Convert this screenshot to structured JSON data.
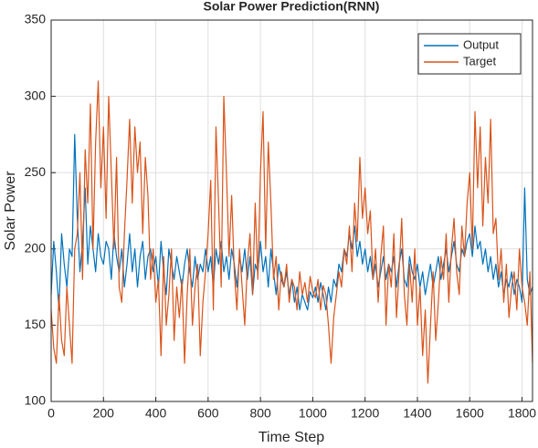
{
  "chart_data": {
    "type": "line",
    "title": "Solar Power Prediction(RNN)",
    "xlabel": "Time Step",
    "ylabel": "Solar Power",
    "x": [
      0,
      10,
      20,
      30,
      40,
      50,
      60,
      70,
      80,
      90,
      100,
      110,
      120,
      130,
      140,
      150,
      160,
      170,
      180,
      190,
      200,
      210,
      220,
      230,
      240,
      250,
      260,
      270,
      280,
      290,
      300,
      310,
      320,
      330,
      340,
      350,
      360,
      370,
      380,
      390,
      400,
      410,
      420,
      430,
      440,
      450,
      460,
      470,
      480,
      490,
      500,
      510,
      520,
      530,
      540,
      550,
      560,
      570,
      580,
      590,
      600,
      610,
      620,
      630,
      640,
      650,
      660,
      670,
      680,
      690,
      700,
      710,
      720,
      730,
      740,
      750,
      760,
      770,
      780,
      790,
      800,
      810,
      820,
      830,
      840,
      850,
      860,
      870,
      880,
      890,
      900,
      910,
      920,
      930,
      940,
      950,
      960,
      970,
      980,
      990,
      1000,
      1010,
      1020,
      1030,
      1040,
      1050,
      1060,
      1070,
      1080,
      1090,
      1100,
      1110,
      1120,
      1130,
      1140,
      1150,
      1160,
      1170,
      1180,
      1190,
      1200,
      1210,
      1220,
      1230,
      1240,
      1250,
      1260,
      1270,
      1280,
      1290,
      1300,
      1310,
      1320,
      1330,
      1340,
      1350,
      1360,
      1370,
      1380,
      1390,
      1400,
      1410,
      1420,
      1430,
      1440,
      1450,
      1460,
      1470,
      1480,
      1490,
      1500,
      1510,
      1520,
      1530,
      1540,
      1550,
      1560,
      1570,
      1580,
      1590,
      1600,
      1610,
      1620,
      1630,
      1640,
      1650,
      1660,
      1670,
      1680,
      1690,
      1700,
      1710,
      1720,
      1730,
      1740,
      1750,
      1760,
      1770,
      1780,
      1790,
      1800,
      1810,
      1820,
      1830,
      1840
    ],
    "series": [
      {
        "name": "Output",
        "color": "#0072BD",
        "values": [
          170,
          205,
          185,
          160,
          210,
          190,
          175,
          200,
          195,
          275,
          220,
          185,
          205,
          240,
          190,
          215,
          200,
          185,
          210,
          195,
          190,
          205,
          200,
          180,
          210,
          195,
          185,
          200,
          175,
          190,
          210,
          185,
          200,
          175,
          195,
          205,
          180,
          195,
          200,
          185,
          195,
          175,
          205,
          185,
          170,
          200,
          190,
          180,
          195,
          185,
          175,
          190,
          200,
          185,
          175,
          195,
          180,
          190,
          185,
          200,
          185,
          195,
          175,
          200,
          190,
          205,
          185,
          195,
          180,
          200,
          190,
          175,
          195,
          185,
          200,
          180,
          195,
          170,
          190,
          185,
          205,
          185,
          195,
          175,
          200,
          185,
          170,
          190,
          180,
          175,
          185,
          170,
          180,
          165,
          175,
          160,
          170,
          165,
          160,
          172,
          168,
          175,
          165,
          178,
          170,
          160,
          175,
          165,
          180,
          175,
          190,
          185,
          200,
          195,
          210,
          200,
          215,
          195,
          205,
          190,
          200,
          185,
          195,
          180,
          190,
          175,
          185,
          195,
          180,
          190,
          185,
          195,
          175,
          190,
          200,
          180,
          175,
          195,
          185,
          180,
          190,
          175,
          185,
          170,
          180,
          190,
          175,
          185,
          195,
          180,
          190,
          200,
          185,
          195,
          205,
          190,
          185,
          200,
          195,
          205,
          210,
          195,
          215,
          200,
          205,
          190,
          200,
          185,
          195,
          180,
          190,
          175,
          185,
          170,
          180,
          175,
          185,
          170,
          180,
          175,
          165,
          240,
          180,
          170,
          175
        ]
      },
      {
        "name": "Target",
        "color": "#D95319",
        "values": [
          160,
          135,
          125,
          170,
          140,
          130,
          175,
          150,
          125,
          200,
          210,
          250,
          180,
          265,
          230,
          295,
          200,
          270,
          310,
          240,
          280,
          220,
          300,
          250,
          200,
          260,
          175,
          165,
          210,
          245,
          285,
          230,
          280,
          250,
          270,
          210,
          260,
          235,
          180,
          200,
          165,
          180,
          130,
          195,
          150,
          170,
          200,
          140,
          175,
          155,
          180,
          125,
          170,
          200,
          150,
          175,
          190,
          130,
          165,
          185,
          210,
          245,
          160,
          280,
          230,
          175,
          300,
          250,
          195,
          235,
          185,
          160,
          200,
          175,
          150,
          190,
          210,
          170,
          230,
          180,
          250,
          290,
          200,
          270,
          230,
          180,
          195,
          160,
          185,
          175,
          190,
          165,
          180,
          175,
          160,
          185,
          170,
          178,
          165,
          182,
          172,
          168,
          180,
          160,
          176,
          170,
          150,
          125,
          155,
          170,
          185,
          175,
          200,
          190,
          215,
          185,
          230,
          205,
          260,
          220,
          240,
          210,
          225,
          180,
          200,
          165,
          195,
          215,
          150,
          190,
          175,
          210,
          155,
          185,
          220,
          170,
          150,
          190,
          165,
          200,
          150,
          175,
          130,
          160,
          112,
          150,
          185,
          140,
          165,
          195,
          180,
          210,
          165,
          200,
          220,
          185,
          170,
          215,
          195,
          230,
          250,
          200,
          290,
          240,
          280,
          215,
          260,
          230,
          285,
          210,
          220,
          180,
          200,
          165,
          190,
          155,
          175,
          185,
          160,
          200,
          175,
          165,
          150,
          185,
          125
        ]
      }
    ],
    "xlim": [
      0,
      1840
    ],
    "ylim": [
      100,
      350
    ],
    "xticks": [
      0,
      200,
      400,
      600,
      800,
      1000,
      1200,
      1400,
      1600,
      1800
    ],
    "yticks": [
      100,
      150,
      200,
      250,
      300,
      350
    ],
    "grid": true,
    "legend": "northeast"
  }
}
